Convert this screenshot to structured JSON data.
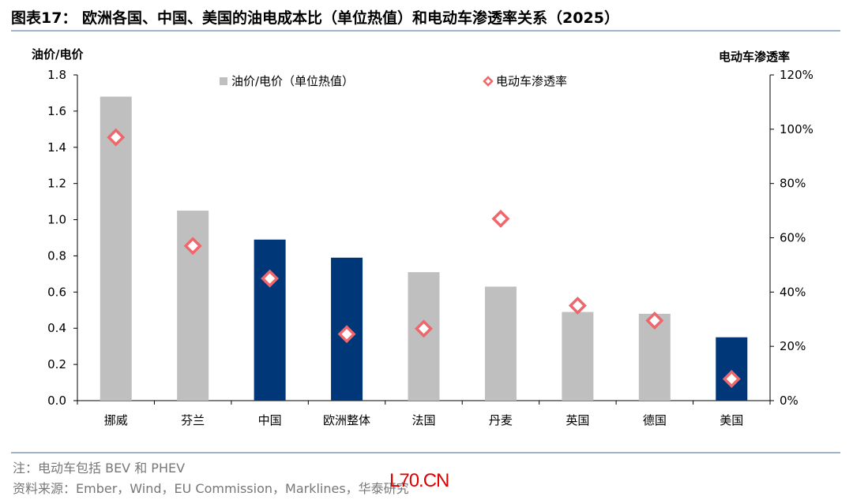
{
  "title": "图表17：  欧洲各国、中国、美国的油电成本比（单位热值）和电动车渗透率关系（2025）",
  "notes": {
    "note": "注：电动车包括 BEV 和 PHEV",
    "source": "资料来源：Ember，Wind，EU Commission，Marklines，华泰研究"
  },
  "watermark": "L70.CN",
  "chart_data": {
    "type": "bar",
    "categories": [
      "挪威",
      "芬兰",
      "中国",
      "欧洲整体",
      "法国",
      "丹麦",
      "英国",
      "德国",
      "美国"
    ],
    "series": [
      {
        "name": "油价/电价（单位热值）",
        "type": "bar",
        "axis": "left",
        "values": [
          1.68,
          1.05,
          0.89,
          0.79,
          0.71,
          0.63,
          0.49,
          0.48,
          0.35
        ],
        "highlight": [
          false,
          false,
          true,
          true,
          false,
          false,
          false,
          false,
          true
        ]
      },
      {
        "name": "电动车渗透率",
        "type": "scatter",
        "axis": "right",
        "values": [
          97,
          57,
          45,
          24.5,
          26.5,
          67,
          35,
          29.5,
          8
        ]
      }
    ],
    "ylabel": "油价/电价",
    "ylabel_right": "电动车渗透率",
    "ylim": [
      0,
      1.8
    ],
    "yticks": [
      "0.0",
      "0.2",
      "0.4",
      "0.6",
      "0.8",
      "1.0",
      "1.2",
      "1.4",
      "1.6",
      "1.8"
    ],
    "ylim_right": [
      0,
      120
    ],
    "yticks_right": [
      "0%",
      "20%",
      "40%",
      "60%",
      "80%",
      "100%",
      "120%"
    ],
    "grid": false,
    "legend_position": "top",
    "colors": {
      "bar_default": "#bfbfbf",
      "bar_highlight": "#003778",
      "marker_stroke": "#f0666a",
      "marker_fill": "#ffffff"
    }
  }
}
